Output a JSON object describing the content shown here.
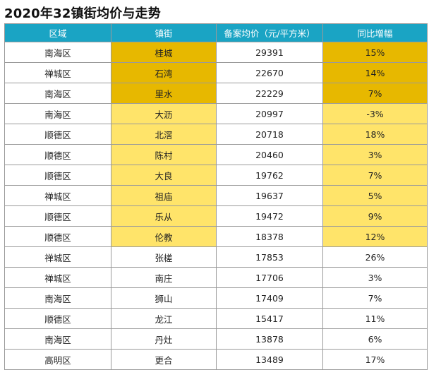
{
  "title": "2020年32镇街均价与走势",
  "colors": {
    "header": "#1aa4c4",
    "highlight_dark": "#e7b800",
    "highlight_light": "#ffe46a"
  },
  "chart_data": {
    "type": "table",
    "title": "2020年32镇街均价与走势",
    "columns": [
      "区域",
      "镇街",
      "备案均价（元/平方米）",
      "同比增幅"
    ],
    "rows": [
      {
        "region": "南海区",
        "town": "桂城",
        "price": "29391",
        "growth": "15%",
        "hl": "dark"
      },
      {
        "region": "禅城区",
        "town": "石湾",
        "price": "22670",
        "growth": "14%",
        "hl": "dark"
      },
      {
        "region": "南海区",
        "town": "里水",
        "price": "22229",
        "growth": "7%",
        "hl": "dark"
      },
      {
        "region": "南海区",
        "town": "大沥",
        "price": "20997",
        "growth": "-3%",
        "hl": "light"
      },
      {
        "region": "顺德区",
        "town": "北滘",
        "price": "20718",
        "growth": "18%",
        "hl": "light"
      },
      {
        "region": "顺德区",
        "town": "陈村",
        "price": "20460",
        "growth": "3%",
        "hl": "light"
      },
      {
        "region": "顺德区",
        "town": "大良",
        "price": "19762",
        "growth": "7%",
        "hl": "light"
      },
      {
        "region": "禅城区",
        "town": "祖庙",
        "price": "19637",
        "growth": "5%",
        "hl": "light"
      },
      {
        "region": "顺德区",
        "town": "乐从",
        "price": "19472",
        "growth": "9%",
        "hl": "light"
      },
      {
        "region": "顺德区",
        "town": "伦教",
        "price": "18378",
        "growth": "12%",
        "hl": "light"
      },
      {
        "region": "禅城区",
        "town": "张槎",
        "price": "17853",
        "growth": "26%",
        "hl": "none"
      },
      {
        "region": "禅城区",
        "town": "南庄",
        "price": "17706",
        "growth": "3%",
        "hl": "none"
      },
      {
        "region": "南海区",
        "town": "狮山",
        "price": "17409",
        "growth": "7%",
        "hl": "none"
      },
      {
        "region": "顺德区",
        "town": "龙江",
        "price": "15417",
        "growth": "11%",
        "hl": "none"
      },
      {
        "region": "南海区",
        "town": "丹灶",
        "price": "13878",
        "growth": "6%",
        "hl": "none"
      },
      {
        "region": "高明区",
        "town": "更合",
        "price": "13489",
        "growth": "17%",
        "hl": "none"
      }
    ]
  }
}
